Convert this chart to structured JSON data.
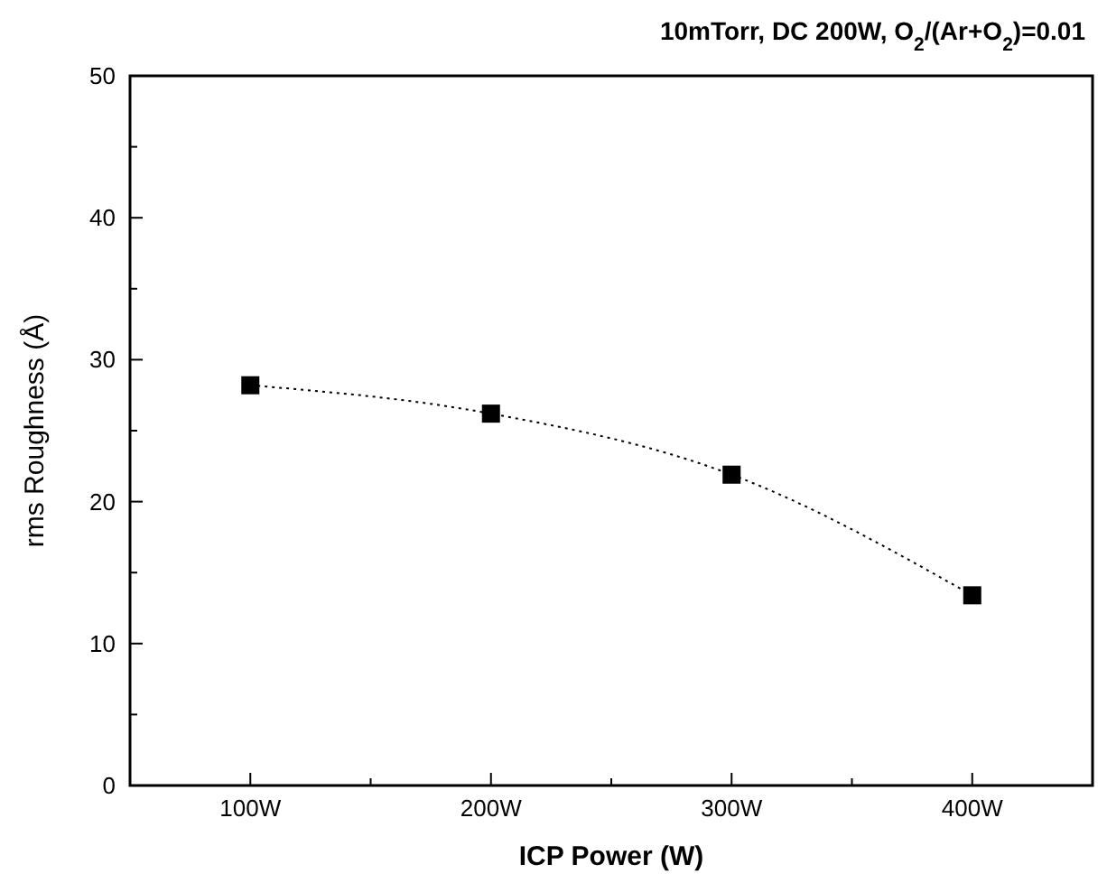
{
  "chart_data": {
    "type": "line",
    "title": "10mTorr, DC 200W, O$_{2}$/(Ar+O$_{2}$)=0.01",
    "xlabel": "ICP Power (W)",
    "ylabel": "rms Roughness (Å)",
    "x": [
      100,
      200,
      300,
      400
    ],
    "series": [
      {
        "color": "#000000",
        "values": [
          28.2,
          26.2,
          21.9,
          13.4
        ]
      }
    ],
    "xlim": [
      50,
      450
    ],
    "xticks": [
      {
        "value": 100,
        "label": "100W"
      },
      {
        "value": 150,
        "label": null
      },
      {
        "value": 200,
        "label": "200W"
      },
      {
        "value": 250,
        "label": null
      },
      {
        "value": 300,
        "label": "300W"
      },
      {
        "value": 350,
        "label": null
      },
      {
        "value": 400,
        "label": "400W"
      }
    ],
    "ylim": [
      0,
      50
    ],
    "yticks": [
      0,
      {
        "value": 5,
        "label": null
      },
      10,
      {
        "value": 15,
        "label": null
      },
      20,
      {
        "value": 25,
        "label": null
      },
      30,
      {
        "value": 35,
        "label": null
      },
      40,
      {
        "value": 45,
        "label": null
      },
      50
    ],
    "marker": "square",
    "line_style": "dotted",
    "grid": false
  }
}
